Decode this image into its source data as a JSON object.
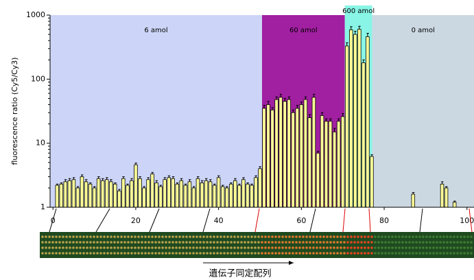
{
  "chart_data": {
    "type": "bar",
    "y_label": "fluorescence ratio (Cy5/Cy3)",
    "x_label": "遺伝子同定配列",
    "log_scale": true,
    "color": "#ffff99",
    "xlim": [
      -0.7,
      101.7
    ],
    "xticks": [
      0,
      20,
      40,
      60,
      80,
      100
    ],
    "ylim": [
      1,
      1000
    ],
    "yticks": [
      1,
      10,
      100,
      1000
    ],
    "regions": [
      {
        "label": "6 amol",
        "start": -0.7,
        "end": 50.5,
        "color": "#ccd5f7"
      },
      {
        "label": "60 amol",
        "start": 50.5,
        "end": 70.5,
        "color": "#a11fa1"
      },
      {
        "label": "600 amol",
        "start": 70.5,
        "end": 77.1,
        "color": "#88f5e6"
      },
      {
        "label": "0 amol",
        "start": 77.1,
        "end": 101.7,
        "color": "#cbd8e2"
      }
    ],
    "x": [
      1,
      2,
      3,
      4,
      5,
      6,
      7,
      8,
      9,
      10,
      11,
      12,
      13,
      14,
      15,
      16,
      17,
      18,
      19,
      20,
      21,
      22,
      23,
      24,
      25,
      26,
      27,
      28,
      29,
      30,
      31,
      32,
      33,
      34,
      35,
      36,
      37,
      38,
      39,
      40,
      41,
      42,
      43,
      44,
      45,
      46,
      47,
      48,
      49,
      50,
      51,
      52,
      53,
      54,
      55,
      56,
      57,
      58,
      59,
      60,
      61,
      62,
      63,
      64,
      65,
      66,
      67,
      68,
      69,
      70,
      71,
      72,
      73,
      74,
      75,
      76,
      77,
      87,
      94,
      95,
      97
    ],
    "values": [
      2.2,
      2.3,
      2.5,
      2.6,
      2.7,
      2.0,
      3.0,
      2.5,
      2.3,
      2.0,
      2.8,
      2.6,
      2.7,
      2.5,
      2.3,
      1.8,
      2.8,
      2.2,
      2.6,
      4.6,
      2.8,
      2.0,
      2.7,
      3.3,
      2.4,
      2.1,
      2.7,
      2.9,
      2.8,
      2.3,
      2.6,
      2.2,
      2.5,
      2.0,
      2.8,
      2.4,
      2.6,
      2.5,
      2.2,
      2.9,
      2.1,
      2.0,
      2.3,
      2.6,
      2.2,
      2.7,
      2.3,
      2.2,
      2.9,
      4.0,
      35,
      40,
      33,
      48,
      52,
      45,
      48,
      30,
      35,
      40,
      48,
      25,
      52,
      7,
      27,
      22,
      22,
      15,
      22,
      26,
      330,
      590,
      500,
      600,
      180,
      460,
      6.2,
      1.6,
      2.3,
      2.0,
      1.2
    ],
    "errors": [
      0.1,
      0.1,
      0.2,
      0.2,
      0.2,
      0.1,
      0.2,
      0.2,
      0.1,
      0.1,
      0.2,
      0.2,
      0.2,
      0.2,
      0.1,
      0.1,
      0.2,
      0.1,
      0.2,
      0.3,
      0.2,
      0.1,
      0.2,
      0.2,
      0.2,
      0.1,
      0.2,
      0.2,
      0.2,
      0.1,
      0.2,
      0.1,
      0.2,
      0.1,
      0.2,
      0.2,
      0.2,
      0.2,
      0.1,
      0.2,
      0.1,
      0.1,
      0.1,
      0.2,
      0.1,
      0.2,
      0.1,
      0.1,
      0.2,
      0.3,
      4,
      5,
      3,
      5,
      6,
      5,
      5,
      3,
      4,
      4,
      5,
      3,
      6,
      0.5,
      3,
      2,
      2,
      2,
      2,
      3,
      40,
      70,
      60,
      70,
      20,
      60,
      0.4,
      0.1,
      0.2,
      0.1,
      0.05
    ]
  }
}
